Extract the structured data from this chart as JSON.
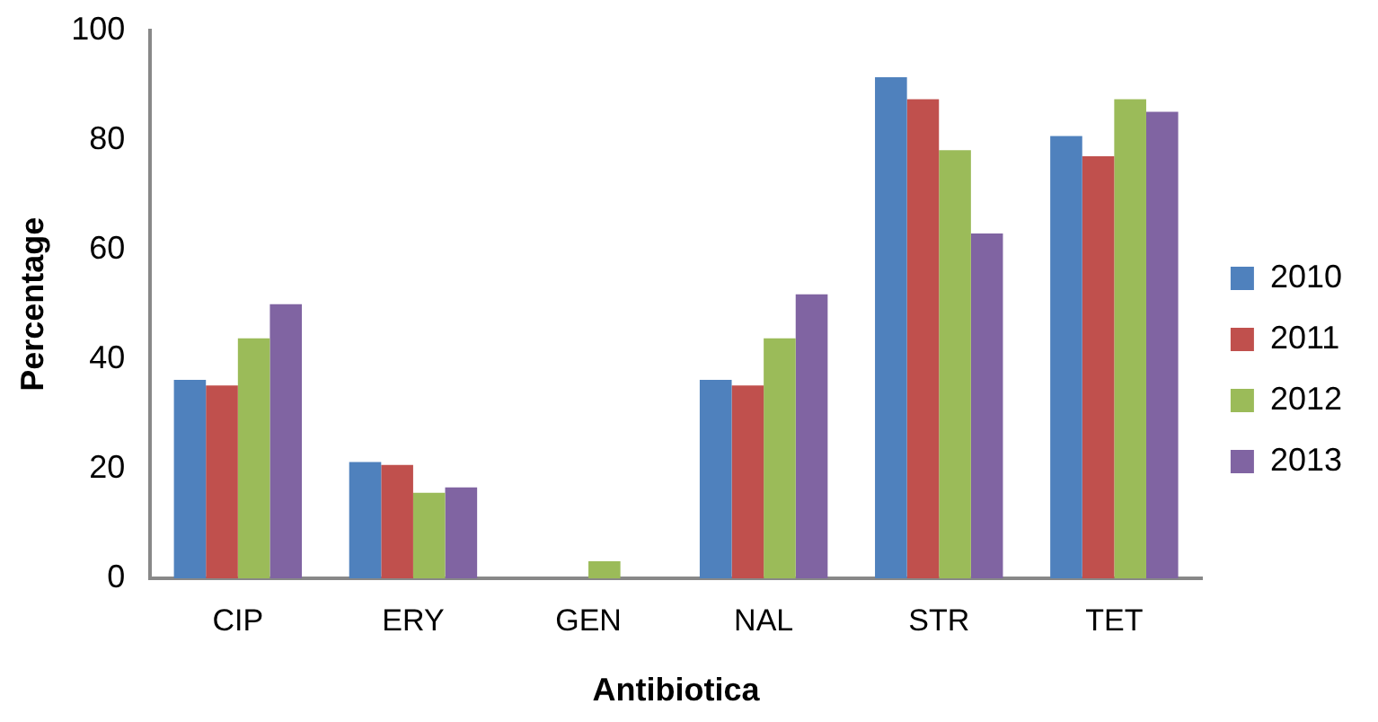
{
  "chart_data": {
    "type": "bar",
    "xlabel": "Antibiotica",
    "ylabel": "Percentage",
    "categories": [
      "CIP",
      "ERY",
      "GEN",
      "NAL",
      "STR",
      "TET"
    ],
    "series": [
      {
        "name": "2010",
        "color": "#4f81bd",
        "values": [
          36.2,
          21.2,
          0,
          36.2,
          91.4,
          80.7
        ]
      },
      {
        "name": "2011",
        "color": "#c0504d",
        "values": [
          35.2,
          20.7,
          0,
          35.2,
          87.4,
          77.0
        ]
      },
      {
        "name": "2012",
        "color": "#9bbb59",
        "values": [
          43.8,
          15.6,
          3.1,
          43.8,
          78.1,
          87.4
        ]
      },
      {
        "name": "2013",
        "color": "#8064a2",
        "values": [
          50.0,
          16.6,
          0,
          51.8,
          62.9,
          85.1
        ]
      }
    ],
    "ylim": [
      0,
      100
    ],
    "yticks": [
      0,
      20,
      40,
      60,
      80,
      100
    ],
    "grid": false,
    "legend": "right"
  }
}
